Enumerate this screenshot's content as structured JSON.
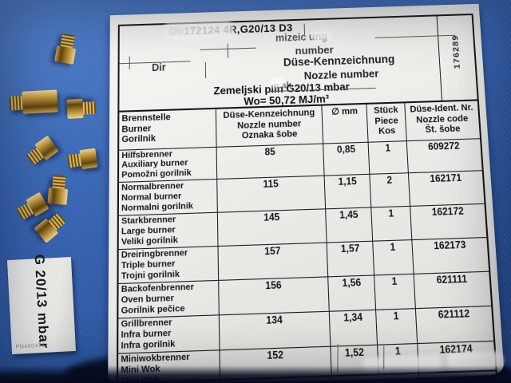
{
  "document": {
    "title_prefix_fragment": "Dü",
    "title": "172124 4R,G20/13 D3",
    "fragments": {
      "kennzeichnung_partial": "mizeic    ung",
      "number": "number",
      "dir": "Dir",
      "duese_kennzeichnung": "Düse-Kennzeichnung",
      "nozzle_number": "Nozzle number",
      "oznaka_partial": "o ak"
    },
    "gas_line": "Zemeljski plin G20/13 mbar",
    "wo_line": "Wo= 50,72 MJ/m³",
    "side_code": "176289",
    "table": {
      "headers": [
        {
          "lines": [
            "Brennstelle",
            "Burner",
            "Gorilnik"
          ]
        },
        {
          "lines": [
            "Düse-Kennzeichnung",
            "Nozzle number",
            "Oznaka šobe"
          ]
        },
        {
          "lines": [
            "∅ mm"
          ]
        },
        {
          "lines": [
            "Stück",
            "Piece",
            "Kos"
          ]
        },
        {
          "lines": [
            "Düse-Ident. Nr.",
            "Nozzle code",
            "Št. šobe"
          ]
        }
      ],
      "rows": [
        {
          "burner": [
            "Hilfsbrenner",
            "Auxiliary burner",
            "Pomožni gorilnik"
          ],
          "nozzle_number": "85",
          "diameter_mm": "0,85",
          "pieces": "1",
          "nozzle_code": "609272"
        },
        {
          "burner": [
            "Normalbrenner",
            "Normal burner",
            "Normalni gorilnik"
          ],
          "nozzle_number": "115",
          "diameter_mm": "1,15",
          "pieces": "2",
          "nozzle_code": "162171"
        },
        {
          "burner": [
            "Starkbrenner",
            "Large burner",
            "Veliki gorilnik"
          ],
          "nozzle_number": "145",
          "diameter_mm": "1,45",
          "pieces": "1",
          "nozzle_code": "162172"
        },
        {
          "burner": [
            "Dreiringbrenner",
            "Triple burner",
            "Trojni gorilnik"
          ],
          "nozzle_number": "157",
          "diameter_mm": "1,57",
          "pieces": "1",
          "nozzle_code": "162173"
        },
        {
          "burner": [
            "Backofenbrenner",
            "Oven burner",
            "Gorilnik pečice"
          ],
          "nozzle_number": "156",
          "diameter_mm": "1,56",
          "pieces": "1",
          "nozzle_code": "621111"
        },
        {
          "burner": [
            "Grillbrenner",
            "Infra burner",
            "Infra gorilnik"
          ],
          "nozzle_number": "134",
          "diameter_mm": "1,34",
          "pieces": "1",
          "nozzle_code": "621112"
        },
        {
          "burner": [
            "Miniwokbrenner",
            "Mini Wok",
            "Mini Wok"
          ],
          "nozzle_number": "152",
          "diameter_mm": "1,52",
          "pieces": "1",
          "nozzle_code": "162174"
        }
      ]
    }
  },
  "label": {
    "text": "G 20/13 mbar",
    "part_number": "PN400475"
  },
  "colors": {
    "background_blue": "#3a69b8",
    "paper": "#efeeea",
    "brass": "#b28a33",
    "table_line": "#1b1b1b"
  }
}
